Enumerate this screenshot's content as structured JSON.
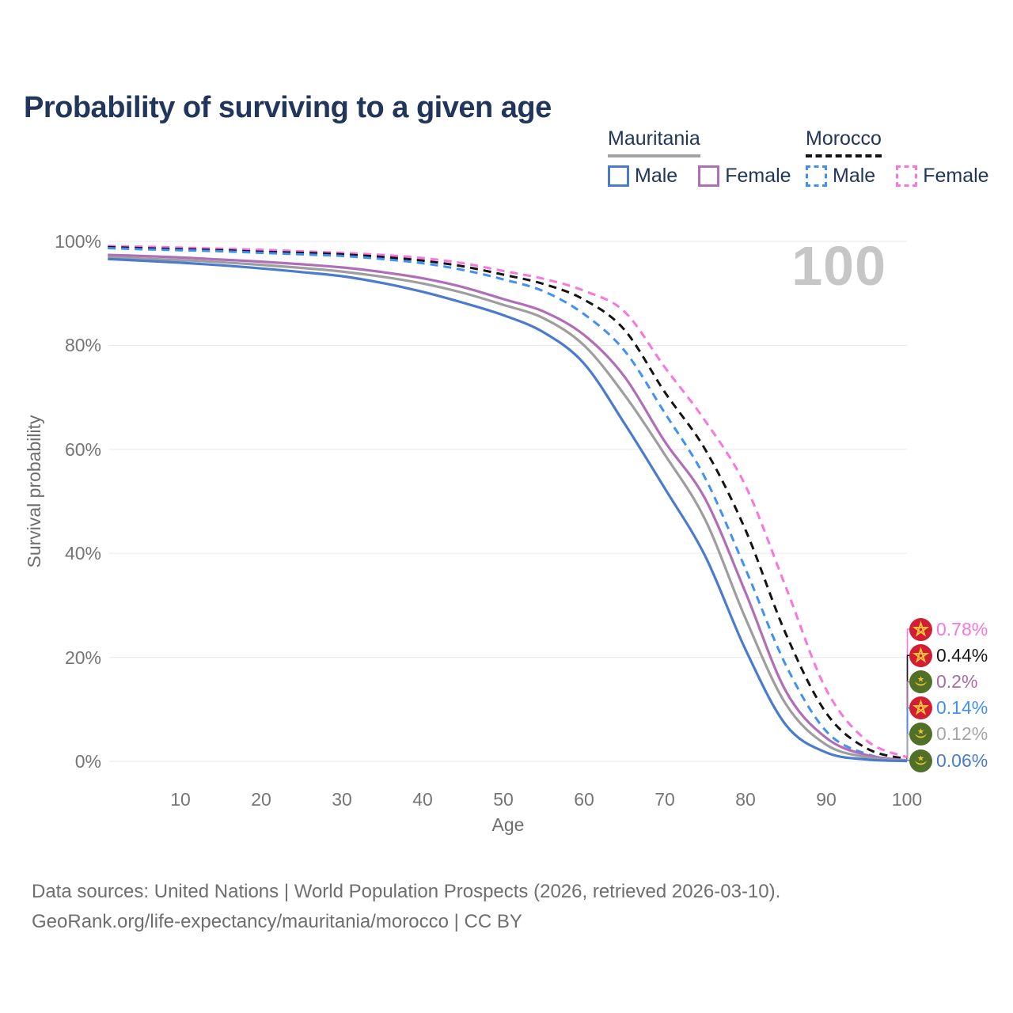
{
  "title": "Probability of surviving to a given age",
  "watermark": "100",
  "legend": {
    "groups": [
      {
        "name": "Mauritania",
        "style": "solid",
        "items": [
          {
            "label": "Male",
            "color": "#4a7bce"
          },
          {
            "label": "Female",
            "color": "#b06eb8"
          }
        ]
      },
      {
        "name": "Morocco",
        "style": "dashed",
        "items": [
          {
            "label": "Male",
            "color": "#4190f5"
          },
          {
            "label": "Female",
            "color": "#fa75de"
          }
        ]
      }
    ]
  },
  "axes": {
    "y_label": "Survival probability",
    "x_label": "Age",
    "y_ticks": [
      {
        "label": "100%",
        "pct": 100
      },
      {
        "label": "80%",
        "pct": 80
      },
      {
        "label": "60%",
        "pct": 60
      },
      {
        "label": "40%",
        "pct": 40
      },
      {
        "label": "20%",
        "pct": 20
      },
      {
        "label": "0%",
        "pct": 0
      }
    ],
    "x_ticks": [
      {
        "label": "10",
        "age": 10
      },
      {
        "label": "20",
        "age": 20
      },
      {
        "label": "30",
        "age": 30
      },
      {
        "label": "40",
        "age": 40
      },
      {
        "label": "50",
        "age": 50
      },
      {
        "label": "60",
        "age": 60
      },
      {
        "label": "70",
        "age": 70
      },
      {
        "label": "80",
        "age": 80
      },
      {
        "label": "90",
        "age": 90
      },
      {
        "label": "100",
        "age": 100
      }
    ]
  },
  "end_labels": [
    {
      "value": "0.78%",
      "end_pct": 0.78,
      "country": "morocco",
      "color": "#fa75de"
    },
    {
      "value": "0.44%",
      "end_pct": 0.44,
      "country": "morocco",
      "color": "#1a1a1a"
    },
    {
      "value": "0.2%",
      "end_pct": 0.2,
      "country": "mauritania",
      "color": "#aa6aa4"
    },
    {
      "value": "0.14%",
      "end_pct": 0.14,
      "country": "morocco",
      "color": "#4190f5"
    },
    {
      "value": "0.12%",
      "end_pct": 0.12,
      "country": "mauritania",
      "color": "#a6a6a6"
    },
    {
      "value": "0.06%",
      "end_pct": 0.06,
      "country": "mauritania",
      "color": "#4a7bce"
    }
  ],
  "footer": {
    "line1": "Data sources: United Nations | World Population Prospects (2026, retrieved 2026-03-10).",
    "line2": "GeoRank.org/life-expectancy/mauritania/morocco | CC BY"
  },
  "colors": {
    "grid": "#ececec",
    "morocco_flag_red": "#d21d33",
    "mauritania_flag_green": "#4f7026",
    "flag_gold": "#f0c53c"
  },
  "chart_data": {
    "type": "line",
    "title": "Probability of surviving to a given age",
    "xlabel": "Age",
    "ylabel": "Survival probability",
    "x_range": [
      1,
      100
    ],
    "y_range_pct": [
      0,
      100
    ],
    "grid": true,
    "legend_position": "top-right",
    "x": [
      1,
      5,
      10,
      15,
      20,
      25,
      30,
      35,
      40,
      45,
      50,
      55,
      60,
      65,
      70,
      75,
      80,
      85,
      90,
      95,
      100
    ],
    "series": [
      {
        "name": "Morocco Female",
        "country": "morocco",
        "sex": "female",
        "style": "dashed",
        "color": "#fa75de",
        "values": [
          99.1,
          99.0,
          98.8,
          98.6,
          98.4,
          98.1,
          97.8,
          97.4,
          96.8,
          95.8,
          94.3,
          92.8,
          90.5,
          86.5,
          75.8,
          65.5,
          53.0,
          33.5,
          13.8,
          4.0,
          0.78
        ]
      },
      {
        "name": "Morocco All",
        "country": "morocco",
        "sex": "all",
        "style": "dashed",
        "color": "#141414",
        "values": [
          98.9,
          98.7,
          98.5,
          98.3,
          98.0,
          97.8,
          97.5,
          97.0,
          96.3,
          95.2,
          93.6,
          91.8,
          88.8,
          83.0,
          71.0,
          60.0,
          44.5,
          24.5,
          9.3,
          2.5,
          0.44
        ]
      },
      {
        "name": "Morocco Male",
        "country": "morocco",
        "sex": "male",
        "style": "dashed",
        "color": "#4190f5",
        "values": [
          98.7,
          98.5,
          98.3,
          98.1,
          97.8,
          97.5,
          97.2,
          96.6,
          95.8,
          94.5,
          92.7,
          90.4,
          86.0,
          79.0,
          67.0,
          54.5,
          37.0,
          18.5,
          5.8,
          1.4,
          0.14
        ]
      },
      {
        "name": "Mauritania Female",
        "country": "mauritania",
        "sex": "female",
        "style": "solid",
        "color": "#b06eb8",
        "values": [
          97.4,
          97.2,
          96.9,
          96.5,
          96.1,
          95.6,
          95.0,
          94.1,
          92.9,
          91.2,
          88.9,
          86.5,
          82.0,
          74.0,
          61.5,
          50.5,
          32.5,
          13.5,
          4.5,
          1.2,
          0.2
        ]
      },
      {
        "name": "Mauritania All",
        "country": "mauritania",
        "sex": "all",
        "style": "solid",
        "color": "#9e9e9e",
        "values": [
          97.0,
          96.7,
          96.4,
          96.0,
          95.5,
          94.9,
          94.2,
          93.2,
          91.9,
          90.1,
          87.8,
          85.2,
          80.0,
          70.5,
          59.0,
          46.5,
          27.5,
          11.0,
          3.2,
          0.8,
          0.12
        ]
      },
      {
        "name": "Mauritania Male",
        "country": "mauritania",
        "sex": "male",
        "style": "solid",
        "color": "#4a7bce",
        "values": [
          96.6,
          96.3,
          95.9,
          95.4,
          94.8,
          94.1,
          93.3,
          92.0,
          90.3,
          88.2,
          85.8,
          82.5,
          76.5,
          65.0,
          52.5,
          39.5,
          21.5,
          7.0,
          1.7,
          0.35,
          0.06
        ]
      }
    ]
  }
}
